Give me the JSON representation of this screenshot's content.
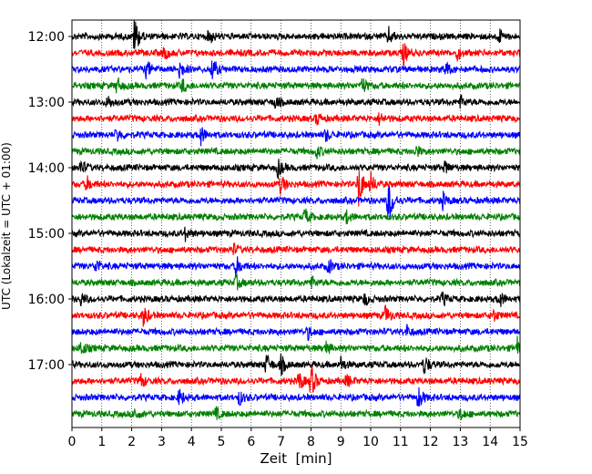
{
  "chart_data": {
    "type": "line",
    "xlabel": "Zeit  [min]",
    "ylabel": "UTC (Lokalzeit = UTC + 01:00)",
    "xlim": [
      0,
      15
    ],
    "x_ticks": [
      "0",
      "1",
      "2",
      "3",
      "4",
      "5",
      "6",
      "7",
      "8",
      "9",
      "10",
      "11",
      "12",
      "13",
      "14",
      "15"
    ],
    "y_ticks": [
      "12:00",
      "13:00",
      "14:00",
      "15:00",
      "16:00",
      "17:00"
    ],
    "grid": "vertical dotted",
    "colors": [
      "#000000",
      "#ff0000",
      "#0000ff",
      "#008000"
    ],
    "traces": [
      {
        "time": "12:00",
        "color": "#000000",
        "events": [
          [
            2.1,
            1.0
          ],
          [
            4.6,
            0.35
          ],
          [
            10.6,
            0.4
          ],
          [
            14.3,
            0.35
          ]
        ]
      },
      {
        "time": "12:15",
        "color": "#ff0000",
        "events": [
          [
            3.1,
            0.35
          ],
          [
            11.1,
            0.55
          ],
          [
            12.9,
            0.3
          ]
        ]
      },
      {
        "time": "12:30",
        "color": "#0000ff",
        "events": [
          [
            2.5,
            0.45
          ],
          [
            3.6,
            0.5
          ],
          [
            4.7,
            0.6
          ],
          [
            12.5,
            0.35
          ]
        ]
      },
      {
        "time": "12:45",
        "color": "#008000",
        "events": [
          [
            1.5,
            0.4
          ],
          [
            3.7,
            0.35
          ],
          [
            9.7,
            0.45
          ]
        ]
      },
      {
        "time": "13:00",
        "color": "#000000",
        "events": [
          [
            1.2,
            0.3
          ],
          [
            6.8,
            0.3
          ],
          [
            13.0,
            0.3
          ]
        ]
      },
      {
        "time": "13:15",
        "color": "#ff0000",
        "events": [
          [
            8.2,
            0.3
          ],
          [
            10.3,
            0.3
          ]
        ]
      },
      {
        "time": "13:30",
        "color": "#0000ff",
        "events": [
          [
            1.5,
            0.35
          ],
          [
            4.3,
            0.5
          ],
          [
            8.5,
            0.3
          ]
        ]
      },
      {
        "time": "13:45",
        "color": "#008000",
        "events": [
          [
            8.2,
            0.3
          ],
          [
            11.5,
            0.3
          ]
        ]
      },
      {
        "time": "14:00",
        "color": "#000000",
        "events": [
          [
            0.3,
            0.35
          ],
          [
            6.9,
            0.45
          ],
          [
            12.5,
            0.3
          ]
        ]
      },
      {
        "time": "14:15",
        "color": "#ff0000",
        "events": [
          [
            0.5,
            0.35
          ],
          [
            7.0,
            0.5
          ],
          [
            9.6,
            1.1
          ],
          [
            10.0,
            0.5
          ]
        ]
      },
      {
        "time": "14:30",
        "color": "#0000ff",
        "events": [
          [
            10.6,
            1.2
          ],
          [
            12.4,
            0.4
          ]
        ]
      },
      {
        "time": "14:45",
        "color": "#008000",
        "events": [
          [
            7.8,
            0.4
          ],
          [
            9.2,
            0.3
          ]
        ]
      },
      {
        "time": "15:00",
        "color": "#000000",
        "events": [
          [
            3.8,
            0.3
          ]
        ]
      },
      {
        "time": "15:15",
        "color": "#ff0000",
        "events": [
          [
            5.4,
            0.25
          ]
        ]
      },
      {
        "time": "15:30",
        "color": "#0000ff",
        "events": [
          [
            0.8,
            0.35
          ],
          [
            5.5,
            0.5
          ],
          [
            8.6,
            0.35
          ]
        ]
      },
      {
        "time": "15:45",
        "color": "#008000",
        "events": [
          [
            5.5,
            0.35
          ],
          [
            8.0,
            0.3
          ]
        ]
      },
      {
        "time": "16:00",
        "color": "#000000",
        "events": [
          [
            0.3,
            0.3
          ],
          [
            9.8,
            0.3
          ],
          [
            12.4,
            0.3
          ],
          [
            14.3,
            0.45
          ]
        ]
      },
      {
        "time": "16:15",
        "color": "#ff0000",
        "events": [
          [
            2.4,
            0.55
          ],
          [
            10.5,
            0.45
          ],
          [
            14.1,
            0.3
          ]
        ]
      },
      {
        "time": "16:30",
        "color": "#0000ff",
        "events": [
          [
            7.9,
            0.3
          ],
          [
            11.2,
            0.3
          ]
        ]
      },
      {
        "time": "16:45",
        "color": "#008000",
        "events": [
          [
            0.3,
            0.4
          ],
          [
            8.5,
            0.3
          ],
          [
            14.9,
            0.55
          ]
        ]
      },
      {
        "time": "17:00",
        "color": "#000000",
        "events": [
          [
            6.5,
            0.55
          ],
          [
            7.0,
            0.45
          ],
          [
            9.0,
            0.35
          ],
          [
            11.8,
            0.5
          ]
        ]
      },
      {
        "time": "17:15",
        "color": "#ff0000",
        "events": [
          [
            2.3,
            0.35
          ],
          [
            7.6,
            0.5
          ],
          [
            8.0,
            0.85
          ],
          [
            9.2,
            0.3
          ]
        ]
      },
      {
        "time": "17:30",
        "color": "#0000ff",
        "events": [
          [
            3.6,
            0.4
          ],
          [
            5.6,
            0.35
          ],
          [
            11.6,
            0.55
          ]
        ]
      },
      {
        "time": "17:45",
        "color": "#008000",
        "events": [
          [
            2.1,
            0.3
          ],
          [
            4.8,
            0.3
          ],
          [
            13.0,
            0.3
          ]
        ]
      }
    ]
  }
}
